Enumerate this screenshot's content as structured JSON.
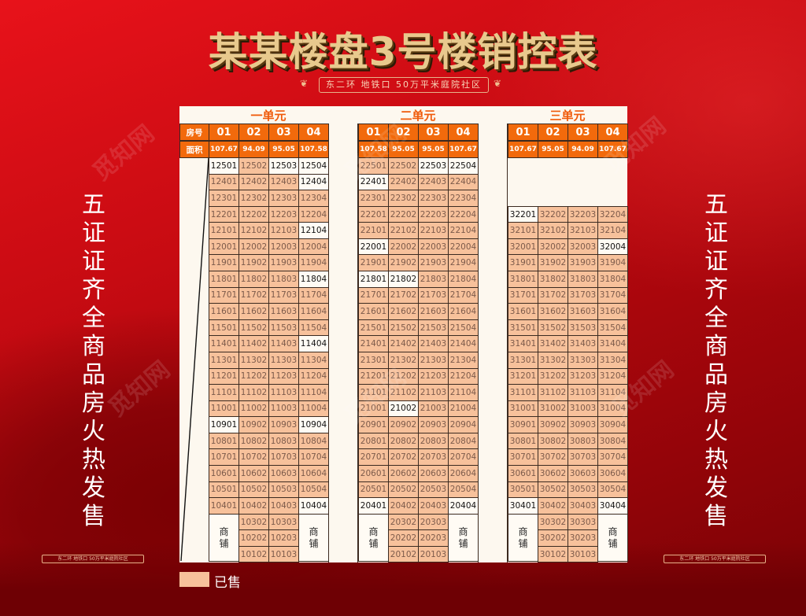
{
  "title": "某某楼盘3号楼销控表",
  "subtitle": "东二环  地铁口  50万平米庭院社区",
  "side_text": [
    "五",
    "证",
    "证",
    "齐",
    "全",
    "商",
    "品",
    "房",
    "",
    "火",
    "热",
    "发",
    "售"
  ],
  "watermark": "觅知网",
  "labels": {
    "room_no": "房号",
    "area": "面积",
    "shop": [
      "商",
      "铺"
    ]
  },
  "legend": {
    "label": "已售",
    "color": "#f7c19b"
  },
  "colors": {
    "header": "#f26a0c",
    "sold": "#f7c19b",
    "unsold": "#fffbf4",
    "unit_title": "#f05a0a"
  },
  "units": [
    {
      "name": "一单元",
      "columns": [
        "01",
        "02",
        "03",
        "04"
      ],
      "areas": [
        "107.67",
        "94.09",
        "95.05",
        "107.58"
      ],
      "top_floor": 25,
      "rows": [
        [
          "12501",
          "12502",
          "12503",
          "12504"
        ],
        [
          "12401",
          "12402",
          "12403",
          "12404"
        ],
        [
          "12301",
          "12302",
          "12303",
          "12304"
        ],
        [
          "12201",
          "12202",
          "12203",
          "12204"
        ],
        [
          "12101",
          "12102",
          "12103",
          "12104"
        ],
        [
          "12001",
          "12002",
          "12003",
          "12004"
        ],
        [
          "11901",
          "11902",
          "11903",
          "11904"
        ],
        [
          "11801",
          "11802",
          "11803",
          "11804"
        ],
        [
          "11701",
          "11702",
          "11703",
          "11704"
        ],
        [
          "11601",
          "11602",
          "11603",
          "11604"
        ],
        [
          "11501",
          "11502",
          "11503",
          "11504"
        ],
        [
          "11401",
          "11402",
          "11403",
          "11404"
        ],
        [
          "11301",
          "11302",
          "11303",
          "11304"
        ],
        [
          "11201",
          "11202",
          "11203",
          "11204"
        ],
        [
          "11101",
          "11102",
          "11103",
          "11104"
        ],
        [
          "11001",
          "11002",
          "11003",
          "11004"
        ],
        [
          "10901",
          "10902",
          "10903",
          "10904"
        ],
        [
          "10801",
          "10802",
          "10803",
          "10804"
        ],
        [
          "10701",
          "10702",
          "10703",
          "10704"
        ],
        [
          "10601",
          "10602",
          "10603",
          "10604"
        ],
        [
          "10501",
          "10502",
          "10503",
          "10504"
        ],
        [
          "10401",
          "10402",
          "10403",
          "10404"
        ]
      ],
      "lower_rows": [
        [
          "10302",
          "10303"
        ],
        [
          "10202",
          "10203"
        ],
        [
          "10102",
          "10103"
        ]
      ],
      "unsold": [
        "12501",
        "12503",
        "12504",
        "12404",
        "12104",
        "11804",
        "11404",
        "10901",
        "10904",
        "10404"
      ]
    },
    {
      "name": "二单元",
      "columns": [
        "01",
        "02",
        "03",
        "04"
      ],
      "areas": [
        "107.58",
        "95.05",
        "95.05",
        "107.67"
      ],
      "top_floor": 25,
      "rows": [
        [
          "22501",
          "22502",
          "22503",
          "22504"
        ],
        [
          "22401",
          "22402",
          "22403",
          "22404"
        ],
        [
          "22301",
          "22302",
          "22303",
          "22304"
        ],
        [
          "22201",
          "22202",
          "22203",
          "22204"
        ],
        [
          "22101",
          "22102",
          "22103",
          "22104"
        ],
        [
          "22001",
          "22002",
          "22003",
          "22004"
        ],
        [
          "21901",
          "21902",
          "21903",
          "21904"
        ],
        [
          "21801",
          "21802",
          "21803",
          "21804"
        ],
        [
          "21701",
          "21702",
          "21703",
          "21704"
        ],
        [
          "21601",
          "21602",
          "21603",
          "21604"
        ],
        [
          "21501",
          "21502",
          "21503",
          "21504"
        ],
        [
          "21401",
          "21402",
          "21403",
          "21404"
        ],
        [
          "21301",
          "21302",
          "21303",
          "21304"
        ],
        [
          "21201",
          "21202",
          "21203",
          "21204"
        ],
        [
          "21101",
          "21102",
          "21103",
          "21104"
        ],
        [
          "21001",
          "21002",
          "21003",
          "21004"
        ],
        [
          "20901",
          "20902",
          "20903",
          "20904"
        ],
        [
          "20801",
          "20802",
          "20803",
          "20804"
        ],
        [
          "20701",
          "20702",
          "20703",
          "20704"
        ],
        [
          "20601",
          "20602",
          "20603",
          "20604"
        ],
        [
          "20501",
          "20502",
          "20503",
          "20504"
        ],
        [
          "20401",
          "20402",
          "20403",
          "20404"
        ]
      ],
      "lower_rows": [
        [
          "20302",
          "20303"
        ],
        [
          "20202",
          "20203"
        ],
        [
          "20102",
          "20103"
        ]
      ],
      "unsold": [
        "22503",
        "22504",
        "22401",
        "22001",
        "21801",
        "21802",
        "21002",
        "20401",
        "20404"
      ]
    },
    {
      "name": "三单元",
      "columns": [
        "01",
        "02",
        "03",
        "04"
      ],
      "areas": [
        "107.67",
        "95.05",
        "94.09",
        "107.67"
      ],
      "top_floor": 22,
      "rows": [
        [
          "32201",
          "32202",
          "32203",
          "32204"
        ],
        [
          "32101",
          "32102",
          "32103",
          "32104"
        ],
        [
          "32001",
          "32002",
          "32003",
          "32004"
        ],
        [
          "31901",
          "31902",
          "31903",
          "31904"
        ],
        [
          "31801",
          "31802",
          "31803",
          "31804"
        ],
        [
          "31701",
          "31702",
          "31703",
          "31704"
        ],
        [
          "31601",
          "31602",
          "31603",
          "31604"
        ],
        [
          "31501",
          "31502",
          "31503",
          "31504"
        ],
        [
          "31401",
          "31402",
          "31403",
          "31404"
        ],
        [
          "31301",
          "31302",
          "31303",
          "31304"
        ],
        [
          "31201",
          "31202",
          "31203",
          "31204"
        ],
        [
          "31101",
          "31102",
          "31103",
          "31104"
        ],
        [
          "31001",
          "31002",
          "31003",
          "31004"
        ],
        [
          "30901",
          "30902",
          "30903",
          "30904"
        ],
        [
          "30801",
          "30802",
          "30803",
          "30804"
        ],
        [
          "30701",
          "30702",
          "30703",
          "30704"
        ],
        [
          "30601",
          "30602",
          "30603",
          "30604"
        ],
        [
          "30501",
          "30502",
          "30503",
          "30504"
        ],
        [
          "30401",
          "30402",
          "30403",
          "30404"
        ]
      ],
      "lower_rows": [
        [
          "30302",
          "30303"
        ],
        [
          "30202",
          "30203"
        ],
        [
          "30102",
          "30103"
        ]
      ],
      "unsold": [
        "32201",
        "32004",
        "30401",
        "30404"
      ]
    }
  ]
}
